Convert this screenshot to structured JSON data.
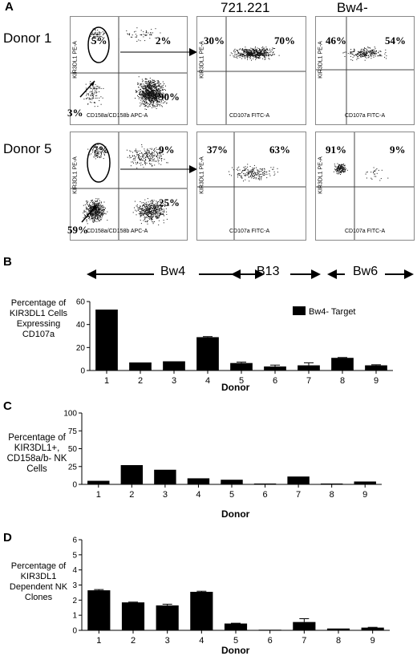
{
  "panel_a": {
    "letter": "A",
    "columns": [
      "721.221",
      "Bw4-"
    ],
    "rows": [
      {
        "donor": "Donor 1",
        "gating": {
          "ylabel": "KIR3DL1 PE-A",
          "xlabel": "CD158a/CD158b APC-A",
          "q_ul": "5%",
          "q_ur": "2%",
          "q_lr": "90%",
          "q_ll": "3%"
        },
        "targets": [
          {
            "ylabel": "KIR3DL1 PE-A",
            "xlabel": "CD107a FITC-A",
            "left": "30%",
            "right": "70%"
          },
          {
            "ylabel": "KIR3DL1 PE-A",
            "xlabel": "CD107a FITC-A",
            "left": "46%",
            "right": "54%"
          }
        ]
      },
      {
        "donor": "Donor 5",
        "gating": {
          "ylabel": "KIR3DL1 PE-A",
          "xlabel": "CD158a/CD158b APC-A",
          "q_ul": "7%",
          "q_ur": "9%",
          "q_lr": "25%",
          "q_ll": "59%"
        },
        "targets": [
          {
            "ylabel": "KIR3DL1 PE-A",
            "xlabel": "CD107a FITC-A",
            "left": "37%",
            "right": "63%"
          },
          {
            "ylabel": "KIR3DL1 PE-A",
            "xlabel": "CD107a FITC-A",
            "left": "91%",
            "right": "9%"
          }
        ]
      }
    ]
  },
  "panel_b": {
    "letter": "B"
  },
  "panel_c": {
    "letter": "C"
  },
  "panel_d": {
    "letter": "D"
  },
  "chart_data": [
    {
      "type": "bar",
      "panel": "B",
      "categories": [
        "1",
        "2",
        "3",
        "4",
        "5",
        "6",
        "7",
        "8",
        "9"
      ],
      "series": [
        {
          "name": "Bw4- Target",
          "values": [
            53,
            7,
            8,
            29,
            6.5,
            3.5,
            4.5,
            11,
            4.5
          ],
          "errors": [
            0,
            0,
            0,
            0.5,
            0.8,
            1.2,
            2.2,
            0.3,
            0.5
          ]
        }
      ],
      "ylabel": "Percentage of KIR3DL1 Cells Expressing CD107a",
      "xlabel": "Donor",
      "ylim": [
        0,
        60
      ],
      "yticks": [
        "0",
        "20",
        "40",
        "60"
      ],
      "legend": "top-right",
      "legend_label": "Bw4- Target",
      "group_labels": [
        "Bw4",
        "B13",
        "Bw6"
      ]
    },
    {
      "type": "bar",
      "panel": "C",
      "categories": [
        "1",
        "2",
        "3",
        "4",
        "5",
        "6",
        "7",
        "8",
        "9"
      ],
      "values": [
        5,
        27,
        20.5,
        8.5,
        6.5,
        1.2,
        11,
        1.2,
        4
      ],
      "ylabel": "Percentage of KIR3DL1+, CD158a/b- NK Cells",
      "xlabel": "Donor",
      "ylim": [
        0,
        100
      ],
      "yticks": [
        "0",
        "25",
        "50",
        "75",
        "100"
      ]
    },
    {
      "type": "bar",
      "panel": "D",
      "categories": [
        "1",
        "2",
        "3",
        "4",
        "5",
        "6",
        "7",
        "8",
        "9"
      ],
      "values": [
        2.65,
        1.85,
        1.65,
        2.55,
        0.45,
        0.04,
        0.55,
        0.12,
        0.18
      ],
      "errors": [
        0.05,
        0.02,
        0.08,
        0.04,
        0.02,
        0,
        0.22,
        0,
        0.02
      ],
      "ylabel": "Percentage of KIR3DL1 Dependent NK Clones",
      "xlabel": "Donor",
      "ylim": [
        0,
        6
      ],
      "yticks": [
        "0",
        "1",
        "2",
        "3",
        "4",
        "5",
        "6"
      ]
    }
  ]
}
